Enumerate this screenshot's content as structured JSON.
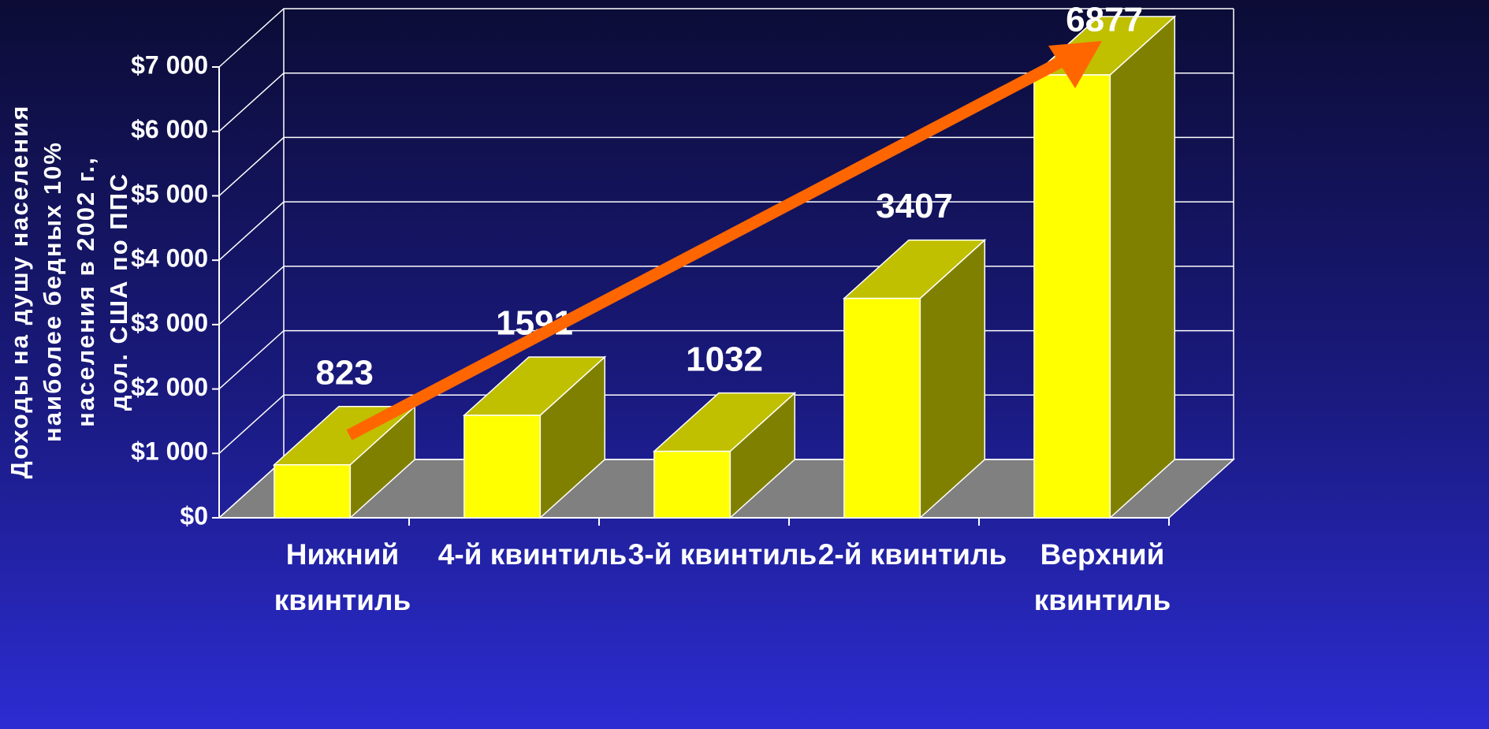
{
  "chart_data": {
    "type": "bar3d",
    "y_label": [
      "Доходы на душу населения",
      "наиболее бедных 10%",
      "населения в 2002 г.,",
      "дол. США по ППС"
    ],
    "categories": [
      "Нижний\nквинтиль",
      "4-й квинтиль",
      "3-й квинтиль",
      "2-й квинтиль",
      "Верхний\nквинтиль"
    ],
    "values": [
      823,
      1591,
      1032,
      3407,
      6877
    ],
    "color": "#ffff00",
    "ylim": [
      0,
      7000
    ],
    "yticks": [
      {
        "value": 0,
        "label": "$0"
      },
      {
        "value": 1000,
        "label": "$1 000"
      },
      {
        "value": 2000,
        "label": "$2 000"
      },
      {
        "value": 3000,
        "label": "$3 000"
      },
      {
        "value": 4000,
        "label": "$4 000"
      },
      {
        "value": 5000,
        "label": "$5 000"
      },
      {
        "value": 6000,
        "label": "$6 000"
      },
      {
        "value": 7000,
        "label": "$7 000"
      }
    ],
    "grid": true
  }
}
